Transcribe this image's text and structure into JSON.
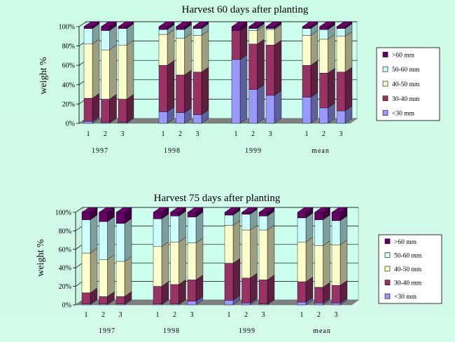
{
  "chart_data": [
    {
      "type": "bar",
      "stacked": true,
      "title": "Harvest 60 days after planting",
      "ylabel": "weight %",
      "ylim": [
        0,
        100
      ],
      "yticks": [
        "0%",
        "20%",
        "40%",
        "60%",
        "80%",
        "100%"
      ],
      "grid": true,
      "legend_position": "right",
      "groups": [
        "1997",
        "1998",
        "1999",
        "mean"
      ],
      "categories": [
        "1",
        "2",
        "3"
      ],
      "series": [
        {
          "name": "<30 mm",
          "color": "#9999ff",
          "values": [
            [
              2,
              1,
              1
            ],
            [
              12,
              11,
              9
            ],
            [
              66,
              35,
              29
            ],
            [
              27,
              16,
              13
            ]
          ]
        },
        {
          "name": "30-40 mm",
          "color": "#993366",
          "values": [
            [
              24,
              24,
              24
            ],
            [
              48,
              39,
              44
            ],
            [
              30,
              47,
              52
            ],
            [
              33,
              36,
              40
            ]
          ]
        },
        {
          "name": "40-50 mm",
          "color": "#ffffcc",
          "values": [
            [
              56,
              51,
              56
            ],
            [
              32,
              38,
              38
            ],
            [
              0,
              14,
              16
            ],
            [
              31,
              35,
              37
            ]
          ]
        },
        {
          "name": "50-60 mm",
          "color": "#ccffff",
          "values": [
            [
              16,
              20,
              17
            ],
            [
              5,
              9,
              7
            ],
            [
              0,
              2,
              1
            ],
            [
              7,
              10,
              8
            ]
          ]
        },
        {
          "name": ">60 mm",
          "color": "#660066",
          "values": [
            [
              2,
              4,
              2
            ],
            [
              3,
              3,
              2
            ],
            [
              4,
              2,
              2
            ],
            [
              2,
              3,
              2
            ]
          ]
        }
      ]
    },
    {
      "type": "bar",
      "stacked": true,
      "title": "Harvest 75 days after planting",
      "ylabel": "weight %",
      "ylim": [
        0,
        100
      ],
      "yticks": [
        "0%",
        "20%",
        "40%",
        "60%",
        "80%",
        "100%"
      ],
      "grid": true,
      "legend_position": "right",
      "groups": [
        "1997",
        "1998",
        "1999",
        "mean"
      ],
      "categories": [
        "1",
        "2",
        "3"
      ],
      "series": [
        {
          "name": "<30 mm",
          "color": "#9999ff",
          "values": [
            [
              1,
              1,
              1
            ],
            [
              1,
              1,
              4
            ],
            [
              5,
              2,
              1
            ],
            [
              3,
              2,
              2
            ]
          ]
        },
        {
          "name": "30-40 mm",
          "color": "#993366",
          "values": [
            [
              12,
              8,
              8
            ],
            [
              19,
              21,
              23
            ],
            [
              40,
              27,
              26
            ],
            [
              22,
              17,
              19
            ]
          ]
        },
        {
          "name": "40-50 mm",
          "color": "#ffffcc",
          "values": [
            [
              43,
              40,
              38
            ],
            [
              43,
              46,
              40
            ],
            [
              41,
              52,
              54
            ],
            [
              43,
              45,
              44
            ]
          ]
        },
        {
          "name": "50-60 mm",
          "color": "#ccffff",
          "values": [
            [
              36,
              41,
              41
            ],
            [
              30,
              28,
              28
            ],
            [
              11,
              17,
              15
            ],
            [
              26,
              28,
              26
            ]
          ]
        },
        {
          "name": ">60 mm",
          "color": "#660066",
          "values": [
            [
              8,
              10,
              12
            ],
            [
              7,
              4,
              5
            ],
            [
              3,
              2,
              4
            ],
            [
              6,
              8,
              9
            ]
          ]
        }
      ]
    }
  ]
}
